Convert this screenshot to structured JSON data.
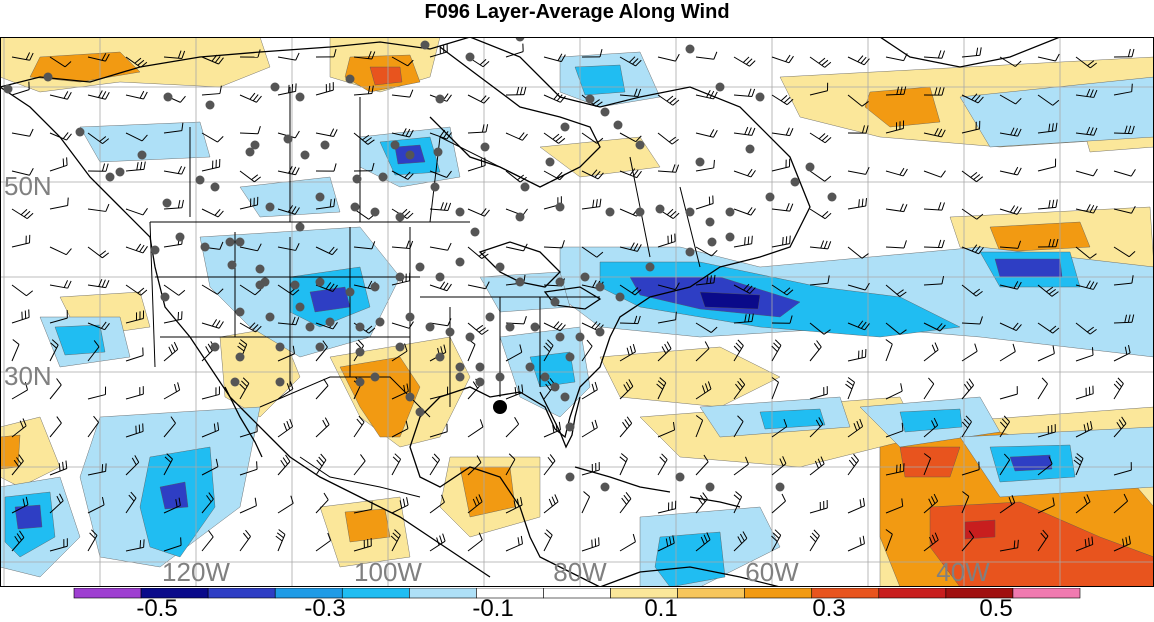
{
  "title": "F096 Layer-Average Along Wind",
  "lat_labels": [
    "50N",
    "30N"
  ],
  "lon_labels": [
    "120W",
    "100W",
    "80W",
    "60W",
    "40W"
  ],
  "colorbar": {
    "tick_labels": [
      "-0.5",
      "-0.3",
      "-0.1",
      "0.1",
      "0.3",
      "0.5"
    ],
    "colors": [
      "#9e3fd1",
      "#0a0a8a",
      "#2e3ec4",
      "#1f9be6",
      "#20bdf2",
      "#aee0f7",
      "#ffffff",
      "#ffffff",
      "#fbe79a",
      "#f7c65c",
      "#f29a12",
      "#e8541e",
      "#c81e1e",
      "#a01010",
      "#f07ab0"
    ]
  },
  "map_style": {
    "land_outline": "#000000",
    "grid": "#a8a8a8",
    "station_marker": "#555555",
    "highlight_marker": "#000000",
    "neg_light": "#aee0f7",
    "neg_mid": "#20bdf2",
    "neg_strong": "#2e3ec4",
    "neg_max": "#0a0a8a",
    "pos_light": "#fbe79a",
    "pos_mid": "#f29a12",
    "pos_strong": "#e8541e",
    "pos_max": "#c81e1e"
  }
}
